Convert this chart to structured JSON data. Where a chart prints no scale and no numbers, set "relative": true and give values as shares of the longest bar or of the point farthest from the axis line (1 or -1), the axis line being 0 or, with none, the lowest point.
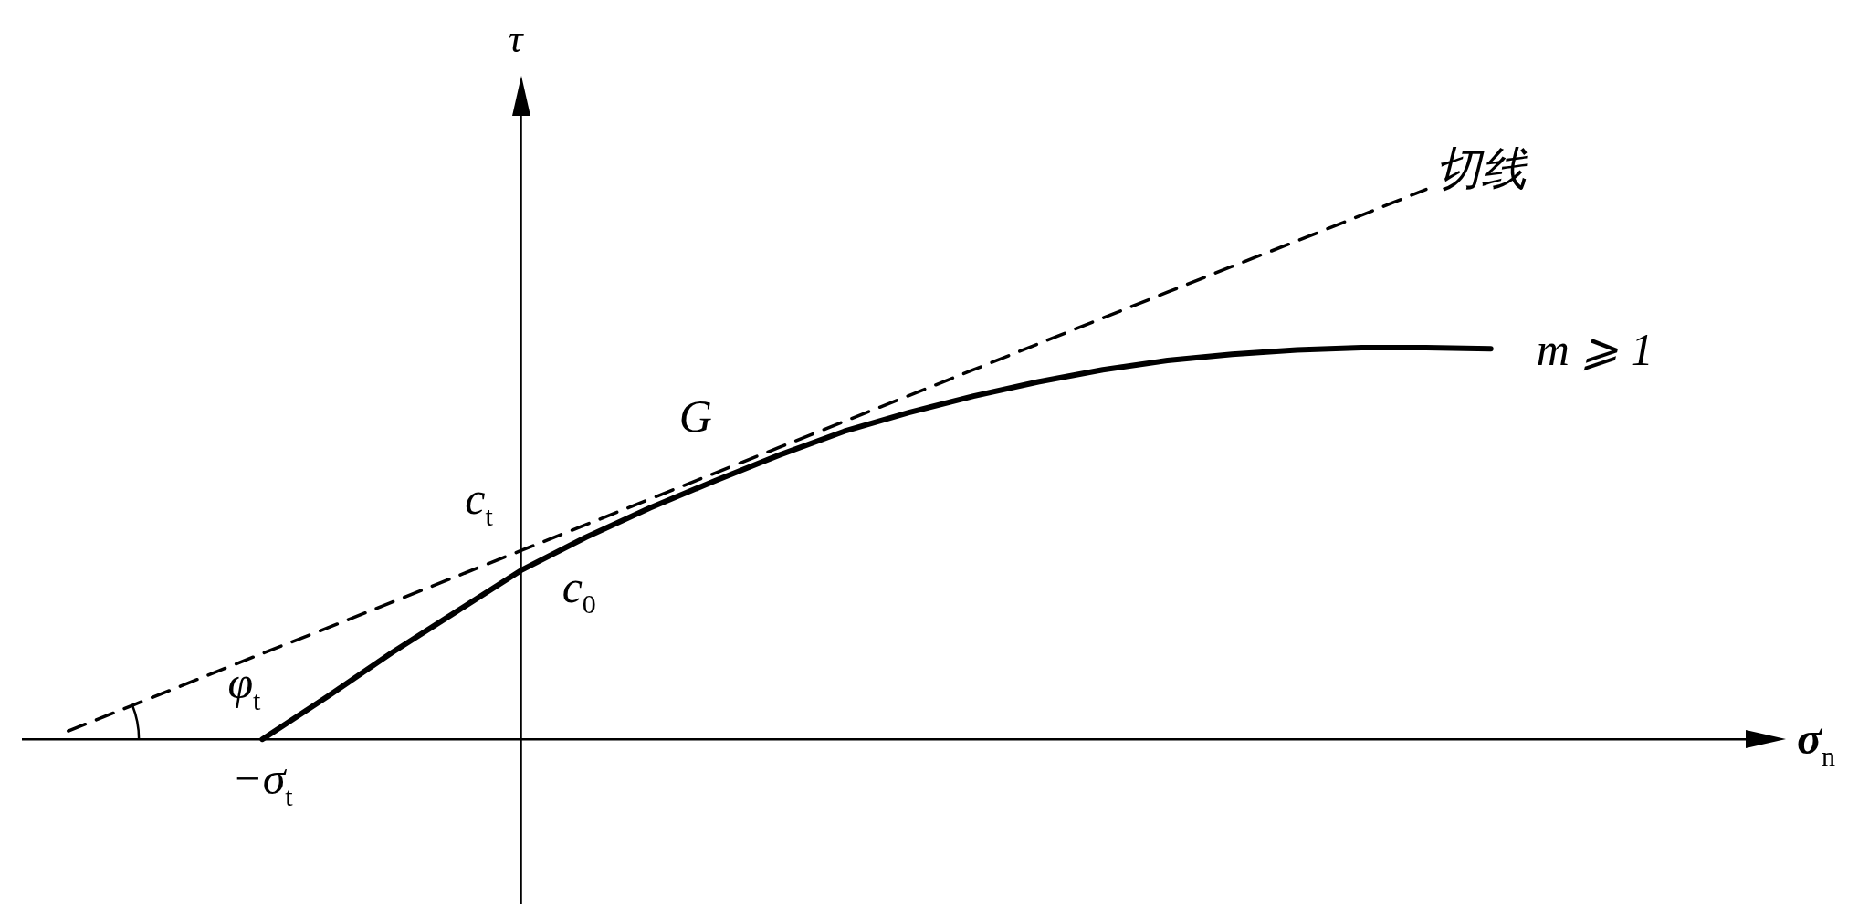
{
  "chart_data": {
    "type": "line",
    "relative": true,
    "xlabel": "σ$_{n}$",
    "ylabel": "τ",
    "categories": [
      null,
      null,
      null,
      null,
      null,
      null,
      null,
      null,
      null,
      null,
      null,
      null,
      null,
      null,
      null,
      null,
      null,
      null,
      null,
      null,
      null,
      null,
      null,
      null,
      null,
      null,
      null,
      null
    ],
    "series": [
      {
        "name": "切线",
        "color": "#000000",
        "line_style": "dashed",
        "values": [
          null,
          0.015,
          0.062,
          0.109,
          0.156,
          0.202,
          0.249,
          0.296,
          0.343,
          0.39,
          0.437,
          0.484,
          0.531,
          0.578,
          0.625,
          0.672,
          0.719,
          0.766,
          0.813,
          0.86,
          0.906,
          0.953,
          1,
          null,
          null,
          null,
          null,
          null
        ]
      },
      {
        "name": "m ⩾ 1",
        "color": "#000000",
        "line_style": "solid",
        "values": [
          null,
          null,
          null,
          null,
          0,
          0.077,
          0.157,
          0.232,
          0.307,
          0.367,
          0.421,
          0.47,
          0.517,
          0.56,
          0.594,
          0.624,
          0.65,
          0.672,
          0.689,
          0.7,
          0.708,
          0.712,
          0.712,
          0.71,
          null,
          null,
          null,
          null
        ]
      }
    ],
    "annotations": [
      "G",
      "c$_{t}$",
      "c$_{0}$",
      "φ$_{t}$",
      "−σ$_{t}$"
    ],
    "legend": false,
    "grid": false,
    "marker": "none"
  }
}
